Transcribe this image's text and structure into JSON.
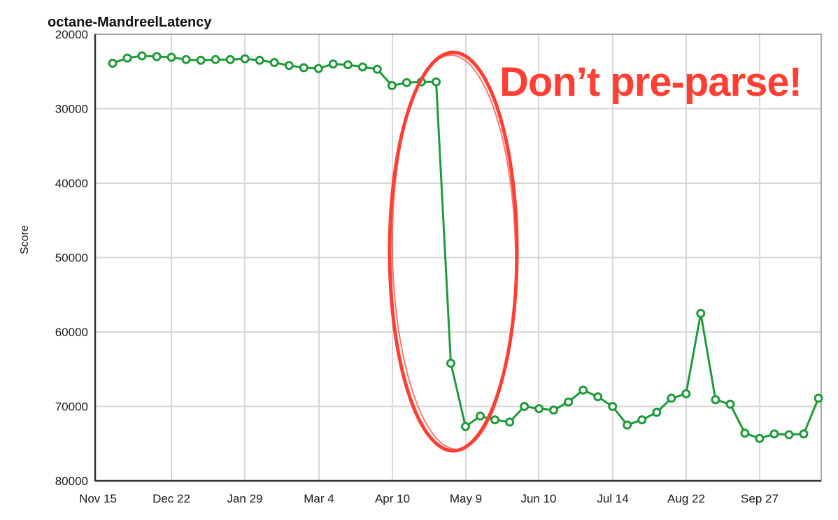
{
  "chart_data": {
    "type": "line",
    "title": "octane-MandreelLatency",
    "ylabel": "Score",
    "xlabel": "",
    "ylim": [
      80000,
      20000
    ],
    "y_inverted": true,
    "y_ticks": [
      20000,
      30000,
      40000,
      50000,
      60000,
      70000,
      80000
    ],
    "x_tick_labels": [
      "Nov 15",
      "Dec 22",
      "Jan 29",
      "Mar 4",
      "Apr 10",
      "May 9",
      "Jun 10",
      "Jul 14",
      "Aug 22",
      "Sep 27"
    ],
    "grid": true,
    "legend": "none",
    "series_color": "#1f9a3a",
    "series": [
      {
        "values": [
          23900,
          23200,
          22900,
          23000,
          23100,
          23400,
          23500,
          23400,
          23400,
          23300,
          23500,
          23800,
          24200,
          24500,
          24600,
          24000,
          24100,
          24400,
          24700,
          26900,
          26500,
          26400,
          26400,
          64200,
          72700,
          71300,
          71800,
          72100,
          70000,
          70300,
          70500,
          69400,
          67800,
          68700,
          70000,
          72500,
          71800,
          70800,
          68900,
          68300,
          57500,
          69100,
          69700,
          73600,
          74300,
          73700,
          73800,
          73700,
          68900
        ]
      }
    ],
    "annotations": [
      {
        "type": "ellipse-highlight",
        "color": "#ff3f33"
      },
      {
        "type": "text",
        "text": "Don’t pre-parse!",
        "color": "#ff3f33"
      }
    ]
  }
}
